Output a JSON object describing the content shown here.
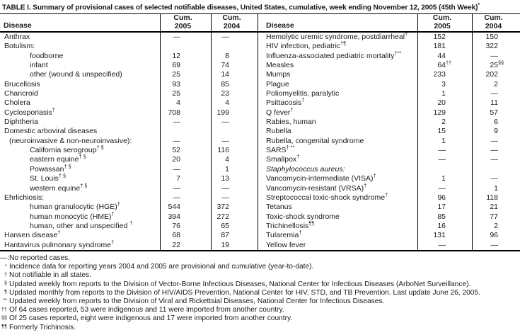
{
  "title": {
    "text": "TABLE I. Summary of provisional cases of selected notifiable diseases, United States, cumulative, week ending November 12, 2005 (45th Week)",
    "sup": "*"
  },
  "header": {
    "disease": "Disease",
    "cum_label": "Cum.",
    "y2005": "2005",
    "y2004": "2004"
  },
  "left_table": {
    "rows": [
      {
        "label": "Anthrax",
        "indent": 0,
        "v2005": "—",
        "v2004": "—"
      },
      {
        "label": "Botulism:",
        "indent": 0,
        "v2005": "",
        "v2004": ""
      },
      {
        "label": "foodborne",
        "indent": 2,
        "v2005": "12",
        "v2004": "8"
      },
      {
        "label": "infant",
        "indent": 2,
        "v2005": "69",
        "v2004": "74"
      },
      {
        "label": "other (wound & unspecified)",
        "indent": 2,
        "v2005": "25",
        "v2004": "14"
      },
      {
        "label": "Brucellosis",
        "indent": 0,
        "v2005": "93",
        "v2004": "85"
      },
      {
        "label": "Chancroid",
        "indent": 0,
        "v2005": "25",
        "v2004": "23"
      },
      {
        "label": "Cholera",
        "indent": 0,
        "v2005": "4",
        "v2004": "4"
      },
      {
        "label": "Cyclosporiasis",
        "sup": "†",
        "indent": 0,
        "v2005": "708",
        "v2004": "199"
      },
      {
        "label": "Diphtheria",
        "indent": 0,
        "v2005": "—",
        "v2004": "—"
      },
      {
        "label": "Domestic arboviral diseases",
        "indent": 0,
        "v2005": "",
        "v2004": ""
      },
      {
        "label": "(neuroinvasive & non-neuroinvasive):",
        "indent": 1,
        "v2005": "—",
        "v2004": "—"
      },
      {
        "label": "California serogroup",
        "sup": "† §",
        "indent": 2,
        "v2005": "52",
        "v2004": "116"
      },
      {
        "label": "eastern equine",
        "sup": "† §",
        "indent": 2,
        "v2005": "20",
        "v2004": "4"
      },
      {
        "label": "Powassan",
        "sup": "† §",
        "indent": 2,
        "v2005": "—",
        "v2004": "1"
      },
      {
        "label": "St. Louis",
        "sup": "† §",
        "indent": 2,
        "v2005": "7",
        "v2004": "13"
      },
      {
        "label": "western equine",
        "sup": "† §",
        "indent": 2,
        "v2005": "—",
        "v2004": "—"
      },
      {
        "label": "Ehrlichiosis:",
        "indent": 0,
        "v2005": "—",
        "v2004": "—"
      },
      {
        "label": "human granulocytic (HGE)",
        "sup": "†",
        "indent": 2,
        "v2005": "544",
        "v2004": "372"
      },
      {
        "label": "human monocytic (HME)",
        "sup": "†",
        "indent": 2,
        "v2005": "394",
        "v2004": "272"
      },
      {
        "label": "human, other and unspecified ",
        "sup": "†",
        "indent": 2,
        "v2005": "76",
        "v2004": "65"
      },
      {
        "label": "Hansen disease",
        "sup": "†",
        "indent": 0,
        "v2005": "68",
        "v2004": "87"
      },
      {
        "label": "Hantavirus pulmonary syndrome",
        "sup": "†",
        "indent": 0,
        "v2005": "22",
        "v2004": "19"
      }
    ]
  },
  "right_table": {
    "rows": [
      {
        "label": "Hemolytic uremic syndrome, postdiarrheal",
        "sup": "†",
        "indent": 0,
        "v2005": "152",
        "v2004": "150"
      },
      {
        "label": "HIV infection, pediatric",
        "sup": "†¶",
        "indent": 0,
        "v2005": "181",
        "v2004": "322"
      },
      {
        "label": "Influenza-associated pediatric mortality",
        "sup": "†**",
        "indent": 0,
        "v2005": "44",
        "v2004": "—"
      },
      {
        "label": "Measles",
        "indent": 0,
        "v2005": "64",
        "v2005_sup": "††",
        "v2004": "25",
        "v2004_sup": "§§"
      },
      {
        "label": "Mumps",
        "indent": 0,
        "v2005": "233",
        "v2004": "202"
      },
      {
        "label": "Plague",
        "indent": 0,
        "v2005": "3",
        "v2004": "2"
      },
      {
        "label": "Poliomyelitis, paralytic",
        "indent": 0,
        "v2005": "1",
        "v2004": "—"
      },
      {
        "label": "Psittacosis",
        "sup": "†",
        "indent": 0,
        "v2005": "20",
        "v2004": "11"
      },
      {
        "label": "Q fever",
        "sup": "†",
        "indent": 0,
        "v2005": "129",
        "v2004": "57"
      },
      {
        "label": "Rabies, human",
        "indent": 0,
        "v2005": "2",
        "v2004": "6"
      },
      {
        "label": "Rubella",
        "indent": 0,
        "v2005": "15",
        "v2004": "9"
      },
      {
        "label": "Rubella, congenital syndrome",
        "indent": 0,
        "v2005": "1",
        "v2004": "—"
      },
      {
        "label": "SARS",
        "sup": "† **",
        "indent": 0,
        "v2005": "—",
        "v2004": "—"
      },
      {
        "label": "Smallpox",
        "sup": "†",
        "indent": 0,
        "v2005": "—",
        "v2004": "—"
      },
      {
        "label": "Staphylococcus aureus:",
        "italic": true,
        "indent": 0,
        "v2005": "",
        "v2004": ""
      },
      {
        "label": "Vancomycin-intermediate (VISA)",
        "sup": "†",
        "indent": 2,
        "v2005": "1",
        "v2004": "—"
      },
      {
        "label": "Vancomycin-resistant (VRSA)",
        "sup": "†",
        "indent": 2,
        "v2005": "—",
        "v2004": "1"
      },
      {
        "label": "Streptococcal toxic-shock syndrome",
        "sup": "†",
        "indent": 0,
        "v2005": "96",
        "v2004": "118"
      },
      {
        "label": "Tetanus",
        "indent": 0,
        "v2005": "17",
        "v2004": "21"
      },
      {
        "label": "Toxic-shock syndrome",
        "indent": 0,
        "v2005": "85",
        "v2004": "77"
      },
      {
        "label": "Trichinellosis",
        "sup": "¶¶",
        "indent": 0,
        "v2005": "16",
        "v2004": "2"
      },
      {
        "label": "Tularemia",
        "sup": "†",
        "indent": 0,
        "v2005": "131",
        "v2004": "96"
      },
      {
        "label": "Yellow fever",
        "indent": 0,
        "v2005": "—",
        "v2004": "—"
      }
    ]
  },
  "footnotes": [
    {
      "marker": "—:",
      "sup": false,
      "text": "No reported cases."
    },
    {
      "marker": "*",
      "sup": true,
      "text": "Incidence data for reporting years 2004 and 2005 are provisional and cumulative (year-to-date)."
    },
    {
      "marker": "†",
      "sup": true,
      "text": "Not notifiable in all states."
    },
    {
      "marker": "§",
      "sup": true,
      "text": "Updated weekly from reports to the Division of Vector-Borne Infectious Diseases, National Center for Infectious Diseases (ArboNet Surveillance)."
    },
    {
      "marker": "¶",
      "sup": true,
      "text": "Updated monthly from reports to the Division of HIV/AIDS Prevention, National Center for HIV, STD, and TB Prevention. Last update June 26, 2005."
    },
    {
      "marker": "**",
      "sup": true,
      "text": "Updated weekly from reports to the Division of Viral and Rickettsial Diseases, National Center for Infectious Diseases."
    },
    {
      "marker": "††",
      "sup": true,
      "text": "Of 64 cases reported, 53 were indigenous and 11 were imported from another country."
    },
    {
      "marker": "§§",
      "sup": true,
      "text": "Of 25 cases reported, eight were indigenous and 17 were imported from another country."
    },
    {
      "marker": "¶¶",
      "sup": true,
      "text": "Formerly Trichinosis."
    }
  ],
  "colors": {
    "text": "#1a1a1a",
    "rule": "#000000",
    "background": "#ffffff"
  }
}
